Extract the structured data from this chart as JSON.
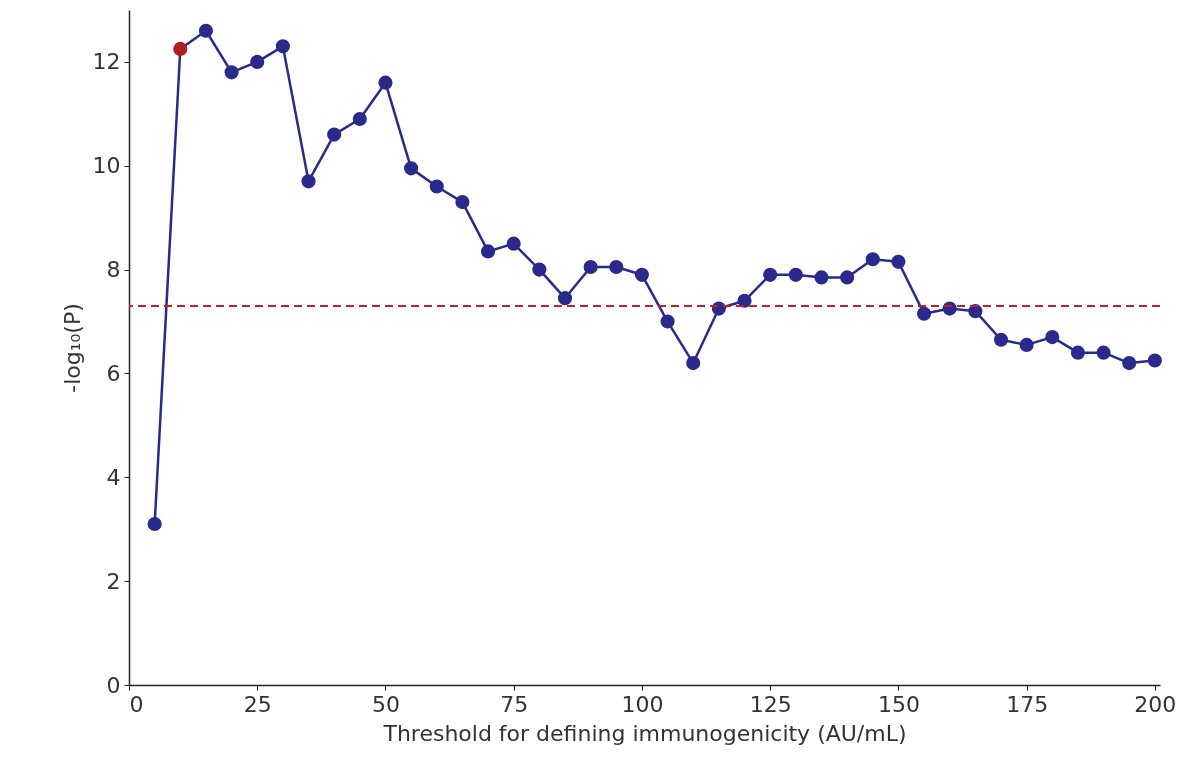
{
  "chart_data": {
    "type": "line",
    "xlabel": "Threshold for defining immunogenicity (AU/mL)",
    "ylabel": "-log₁₀(P)",
    "x": [
      5,
      10,
      15,
      20,
      25,
      30,
      35,
      40,
      45,
      50,
      55,
      60,
      65,
      70,
      75,
      80,
      85,
      90,
      95,
      100,
      105,
      110,
      115,
      120,
      125,
      130,
      135,
      140,
      145,
      150,
      155,
      160,
      165,
      170,
      175,
      180,
      185,
      190,
      195,
      200
    ],
    "series": [
      {
        "color": "#2a2a8c",
        "marker": "circle",
        "colors": [
          "#2a2a8c",
          "#b01e1e",
          "#2a2a8c",
          "#2a2a8c",
          "#2a2a8c",
          "#2a2a8c",
          "#2a2a8c",
          "#2a2a8c",
          "#2a2a8c",
          "#2a2a8c",
          "#2a2a8c",
          "#2a2a8c",
          "#2a2a8c",
          "#2a2a8c",
          "#2a2a8c",
          "#2a2a8c",
          "#2a2a8c",
          "#2a2a8c",
          "#2a2a8c",
          "#2a2a8c",
          "#2a2a8c",
          "#2a2a8c",
          "#2a2a8c",
          "#2a2a8c",
          "#2a2a8c",
          "#2a2a8c",
          "#2a2a8c",
          "#2a2a8c",
          "#2a2a8c",
          "#2a2a8c",
          "#2a2a8c",
          "#2a2a8c",
          "#2a2a8c",
          "#2a2a8c",
          "#2a2a8c",
          "#2a2a8c",
          "#2a2a8c",
          "#2a2a8c",
          "#2a2a8c",
          "#2a2a8c"
        ],
        "values": [
          3.1,
          12.25,
          12.6,
          11.8,
          12.0,
          12.3,
          9.7,
          10.6,
          10.9,
          11.6,
          9.95,
          9.6,
          9.3,
          8.35,
          8.5,
          8.0,
          7.45,
          8.05,
          8.05,
          7.9,
          7.0,
          6.2,
          7.25,
          7.4,
          7.9,
          7.9,
          7.85,
          7.85,
          8.2,
          8.15,
          7.15,
          7.25,
          7.2,
          6.65,
          6.55,
          6.7,
          6.4,
          6.4,
          6.2,
          6.25
        ]
      }
    ],
    "ref_lines": [
      {
        "axis": "y",
        "value": 7.3,
        "color": "#c42020",
        "line_style": "dashed"
      }
    ],
    "xlim": [
      0,
      201
    ],
    "ylim": [
      0,
      13
    ],
    "xticks": [
      0,
      25,
      50,
      75,
      100,
      125,
      150,
      175,
      200
    ],
    "yticks": [
      0,
      2,
      4,
      6,
      8,
      10,
      12
    ],
    "grid": false,
    "line_style": "solid"
  }
}
